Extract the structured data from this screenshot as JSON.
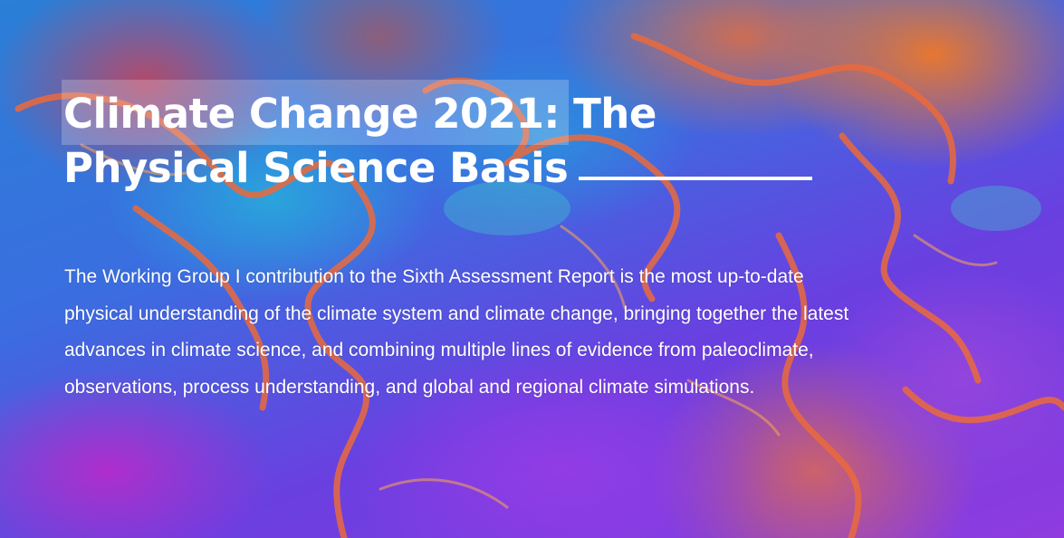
{
  "hero": {
    "title_line1": "Climate Change 2021: The",
    "title_line2": "Physical Science Basis",
    "description": "The Working Group I contribution to the Sixth Assessment Report is the most up-to-date physical understanding of the climate system and climate change, bringing together the latest advances in climate science, and combining multiple lines of evidence from paleoclimate, observations, process understanding, and global and regional climate simulations."
  },
  "colors": {
    "text": "#ffffff",
    "ocean_blue": "#2a7fd6",
    "purple": "#8f3be0",
    "orange": "#f07828",
    "coastline": "#e8643c"
  },
  "icons": {
    "title_rule": "horizontal-line"
  }
}
